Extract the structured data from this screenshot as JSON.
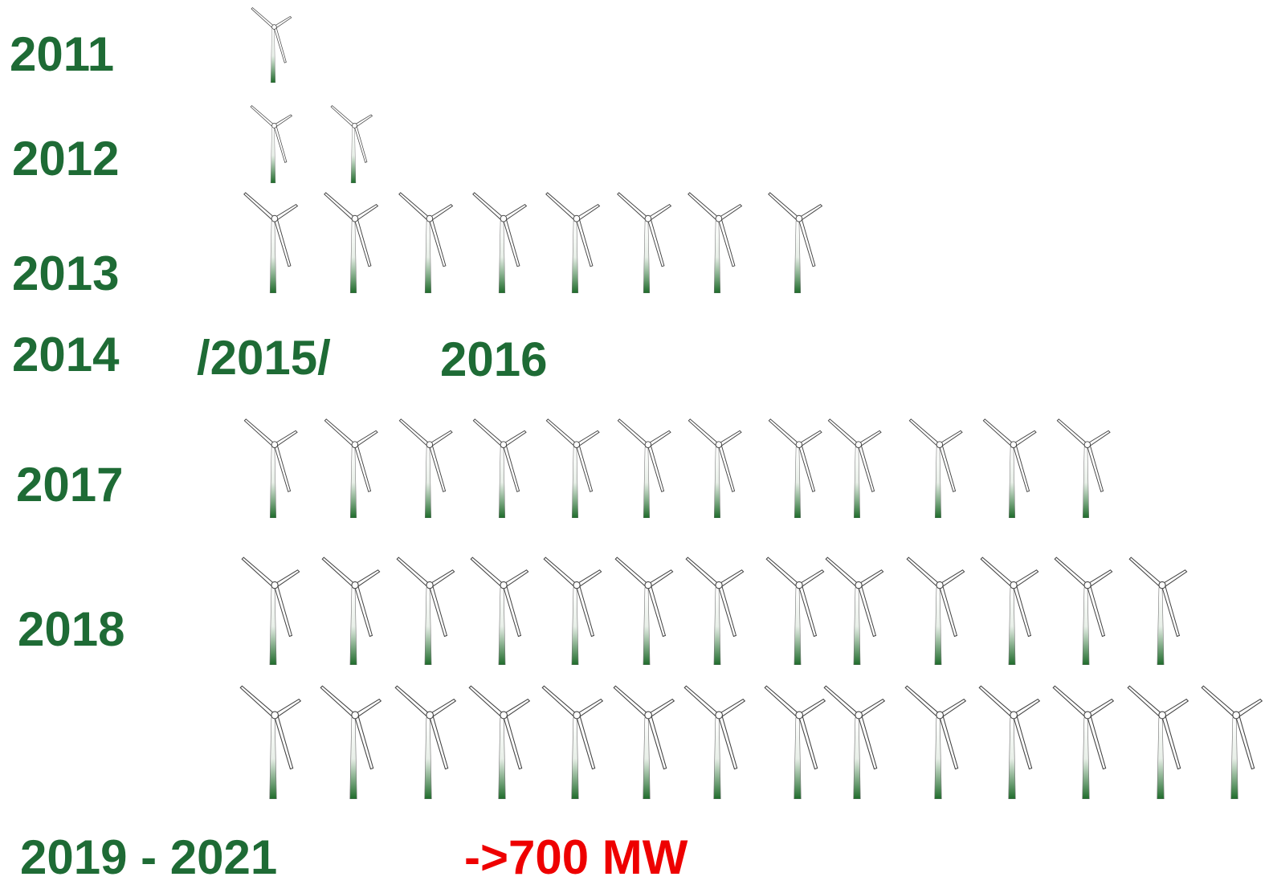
{
  "rows": [
    {
      "label": "2011",
      "counts": [
        1
      ]
    },
    {
      "label": "2012",
      "counts": [
        2
      ]
    },
    {
      "label": "2013",
      "counts": [
        8
      ]
    },
    {
      "label": "2017",
      "counts": [
        12
      ]
    },
    {
      "label": "2018",
      "counts": [
        13,
        14
      ]
    }
  ],
  "gap_years": [
    "2014",
    "/2015/",
    "2016"
  ],
  "footer": {
    "period": "2019 - 2021",
    "capacity": "->700 MW"
  }
}
